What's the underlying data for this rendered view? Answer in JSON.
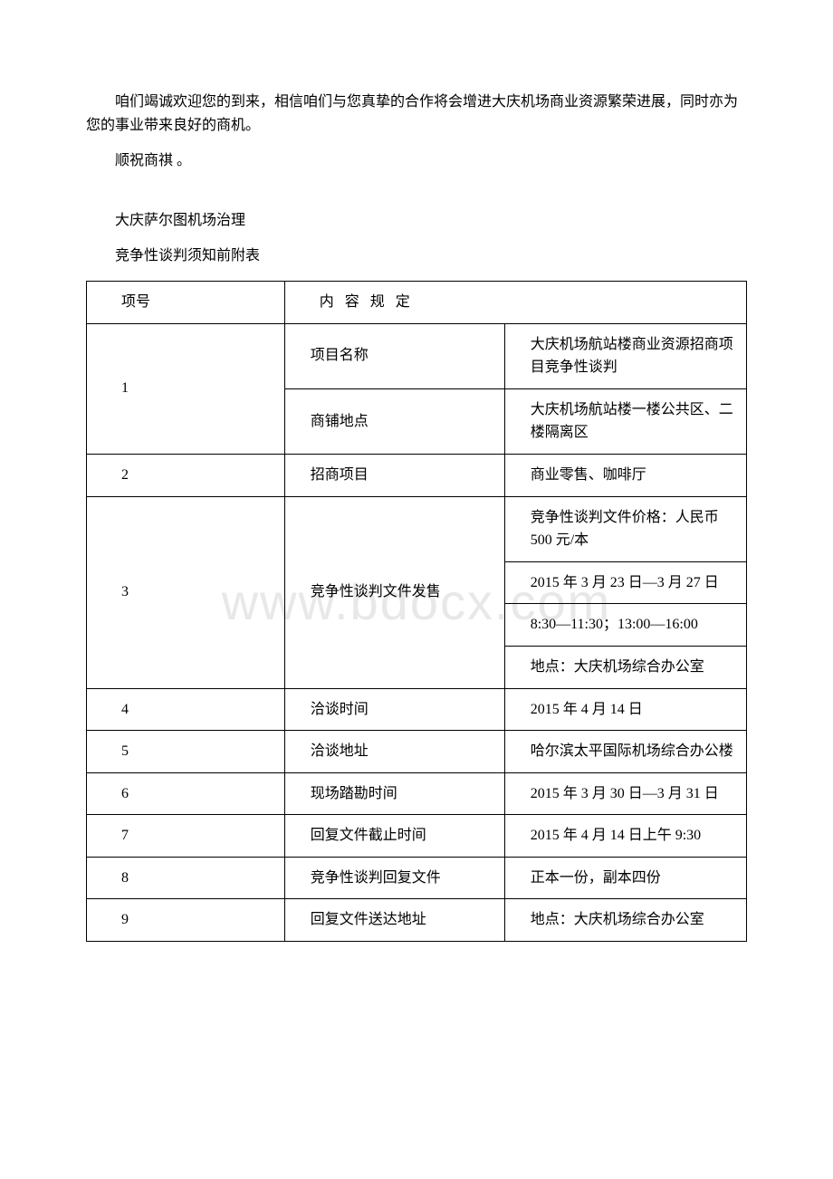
{
  "watermark": "www.bdocx.com",
  "paragraphs": {
    "p1": "咱们竭诚欢迎您的到来，相信咱们与您真挚的合作将会增进大庆机场商业资源繁荣进展，同时亦为您的事业带来良好的商机。",
    "p2": "顺祝商祺 。",
    "p3": "大庆萨尔图机场治理",
    "p4": "竞争性谈判须知前附表"
  },
  "table": {
    "header": {
      "col1": "项号",
      "col2": "内 容 规 定"
    },
    "rows": [
      {
        "num": "1",
        "items": [
          {
            "label": "项目名称",
            "value": "大庆机场航站楼商业资源招商项目竞争性谈判"
          },
          {
            "label": "商铺地点",
            "value": "大庆机场航站楼一楼公共区、二楼隔离区"
          }
        ]
      },
      {
        "num": "2",
        "items": [
          {
            "label": "招商项目",
            "value": "商业零售、咖啡厅"
          }
        ]
      },
      {
        "num": "3",
        "items": [
          {
            "label": "竞争性谈判文件发售",
            "values": [
              "竞争性谈判文件价格：人民币 500 元/本",
              "2015 年 3 月 23 日—3 月 27 日",
              "8:30—11:30；13:00—16:00",
              "地点：大庆机场综合办公室"
            ]
          }
        ]
      },
      {
        "num": "4",
        "items": [
          {
            "label": "洽谈时间",
            "value": "2015 年 4 月 14 日"
          }
        ]
      },
      {
        "num": "5",
        "items": [
          {
            "label": "洽谈地址",
            "value": "哈尔滨太平国际机场综合办公楼"
          }
        ]
      },
      {
        "num": "6",
        "items": [
          {
            "label": "现场踏勘时间",
            "value": "2015 年 3 月 30 日—3 月 31 日"
          }
        ]
      },
      {
        "num": "7",
        "items": [
          {
            "label": "回复文件截止时间",
            "value": "2015 年 4 月 14 日上午 9:30"
          }
        ]
      },
      {
        "num": "8",
        "items": [
          {
            "label": "竞争性谈判回复文件",
            "value": "正本一份，副本四份"
          }
        ]
      },
      {
        "num": "9",
        "items": [
          {
            "label": "回复文件送达地址",
            "value": "地点：大庆机场综合办公室"
          }
        ]
      }
    ]
  }
}
